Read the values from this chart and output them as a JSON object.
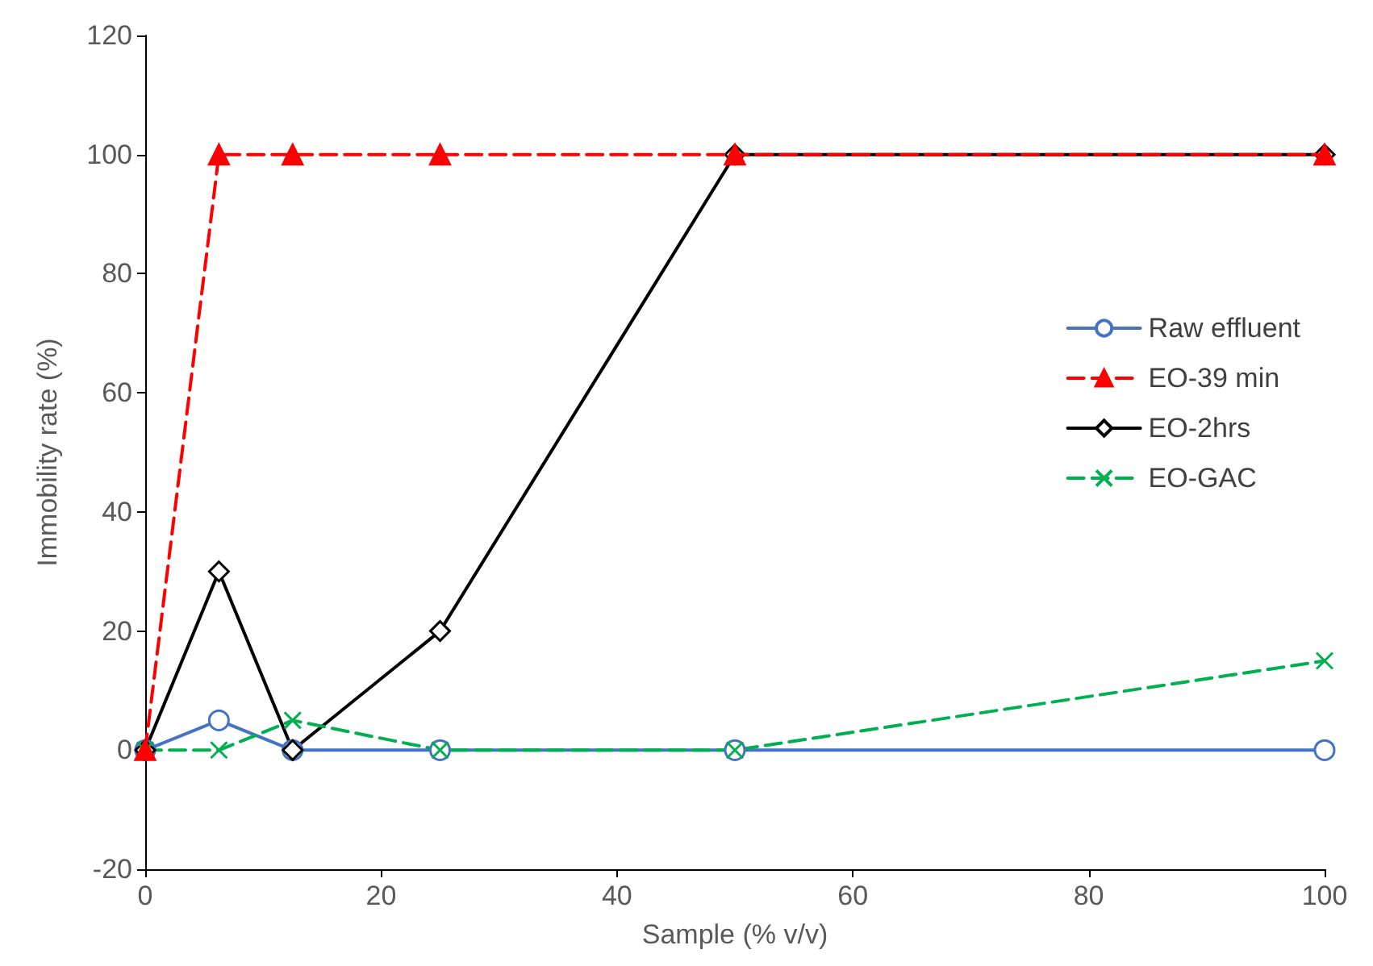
{
  "chart_data": {
    "type": "line",
    "xlabel": "Sample (% v/v)",
    "ylabel": "Immobility rate (%)",
    "x": [
      0,
      6.25,
      12.5,
      25,
      50,
      100
    ],
    "series": [
      {
        "name": "Raw effluent",
        "color": "#4472c4",
        "values": [
          0,
          5,
          0,
          0,
          0,
          0
        ],
        "marker": "circle",
        "line_style": "solid"
      },
      {
        "name": "EO-39 min",
        "color": "#ff0000",
        "values": [
          0,
          100,
          100,
          100,
          100,
          100
        ],
        "marker": "triangle",
        "line_style": "dashed"
      },
      {
        "name": "EO-2hrs",
        "color": "#000000",
        "values": [
          0,
          30,
          0,
          20,
          100,
          100
        ],
        "marker": "diamond",
        "line_style": "solid"
      },
      {
        "name": "EO-GAC",
        "color": "#00b050",
        "values": [
          0,
          0,
          5,
          0,
          0,
          15
        ],
        "marker": "cross",
        "line_style": "dashed"
      }
    ],
    "xlim": [
      0,
      100
    ],
    "xticks": [
      0,
      20,
      40,
      60,
      80,
      100
    ],
    "ylim": [
      -20,
      120
    ],
    "yticks": [
      -20,
      0,
      20,
      40,
      60,
      80,
      100,
      120
    ],
    "grid": false,
    "legend": "right"
  }
}
